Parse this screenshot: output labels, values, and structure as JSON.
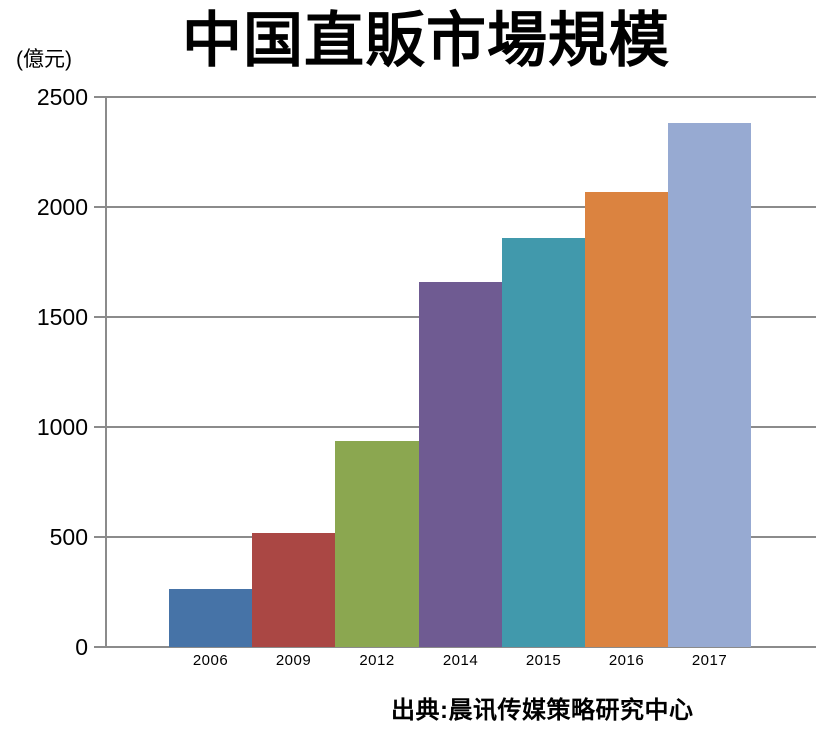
{
  "chart_data": {
    "type": "bar",
    "title": "中国直販市場規模",
    "unit_label": "(億元)",
    "source": "出典:晨讯传媒策略研究中心",
    "categories": [
      "2006",
      "2009",
      "2012",
      "2014",
      "2015",
      "2016",
      "2017"
    ],
    "values": [
      265,
      520,
      935,
      1660,
      1860,
      2070,
      2380
    ],
    "bar_colors": [
      "#4673A7",
      "#AA4744",
      "#8BA750",
      "#6F5B92",
      "#4199AC",
      "#DB8340",
      "#97AAD2"
    ],
    "xlabel": "",
    "ylabel": "",
    "ylim": [
      0,
      2500
    ],
    "yticks": [
      0,
      500,
      1000,
      1500,
      2000,
      2500
    ],
    "grid": true,
    "legend": "none"
  },
  "colors": {
    "background": "#FFFFFF",
    "grid": "#8B8B8B",
    "axis": "#8B8B8B",
    "text": "#000000"
  }
}
